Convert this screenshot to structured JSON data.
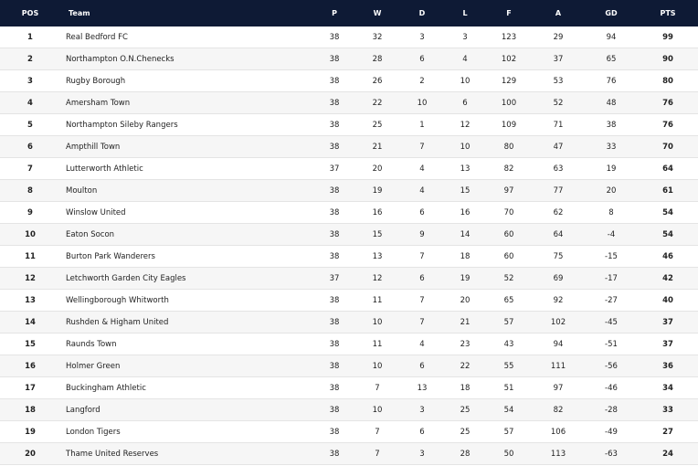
{
  "table": {
    "header": [
      "POS",
      "Team",
      "P",
      "W",
      "D",
      "L",
      "F",
      "A",
      "GD",
      "PTS"
    ],
    "rows": [
      [
        1,
        "Real Bedford FC",
        38,
        32,
        3,
        3,
        123,
        29,
        94,
        99
      ],
      [
        2,
        "Northampton O.N.Chenecks",
        38,
        28,
        6,
        4,
        102,
        37,
        65,
        90
      ],
      [
        3,
        "Rugby Borough",
        38,
        26,
        2,
        10,
        129,
        53,
        76,
        80
      ],
      [
        4,
        "Amersham Town",
        38,
        22,
        10,
        6,
        100,
        52,
        48,
        76
      ],
      [
        5,
        "Northampton Sileby Rangers",
        38,
        25,
        1,
        12,
        109,
        71,
        38,
        76
      ],
      [
        6,
        "Ampthill Town",
        38,
        21,
        7,
        10,
        80,
        47,
        33,
        70
      ],
      [
        7,
        "Lutterworth Athletic",
        37,
        20,
        4,
        13,
        82,
        63,
        19,
        64
      ],
      [
        8,
        "Moulton",
        38,
        19,
        4,
        15,
        97,
        77,
        20,
        61
      ],
      [
        9,
        "Winslow United",
        38,
        16,
        6,
        16,
        70,
        62,
        8,
        54
      ],
      [
        10,
        "Eaton Socon",
        38,
        15,
        9,
        14,
        60,
        64,
        -4,
        54
      ],
      [
        11,
        "Burton Park Wanderers",
        38,
        13,
        7,
        18,
        60,
        75,
        -15,
        46
      ],
      [
        12,
        "Letchworth Garden City Eagles",
        37,
        12,
        6,
        19,
        52,
        69,
        -17,
        42
      ],
      [
        13,
        "Wellingborough Whitworth",
        38,
        11,
        7,
        20,
        65,
        92,
        -27,
        40
      ],
      [
        14,
        "Rushden & Higham United",
        38,
        10,
        7,
        21,
        57,
        102,
        -45,
        37
      ],
      [
        15,
        "Raunds Town",
        38,
        11,
        4,
        23,
        43,
        94,
        -51,
        37
      ],
      [
        16,
        "Holmer Green",
        38,
        10,
        6,
        22,
        55,
        111,
        -56,
        36
      ],
      [
        17,
        "Buckingham Athletic",
        38,
        7,
        13,
        18,
        51,
        97,
        -46,
        34
      ],
      [
        18,
        "Langford",
        38,
        10,
        3,
        25,
        54,
        82,
        -28,
        33
      ],
      [
        19,
        "London Tigers",
        38,
        7,
        6,
        25,
        57,
        106,
        -49,
        27
      ],
      [
        20,
        "Thame United Reserves",
        38,
        7,
        3,
        28,
        50,
        113,
        -63,
        24
      ]
    ]
  }
}
